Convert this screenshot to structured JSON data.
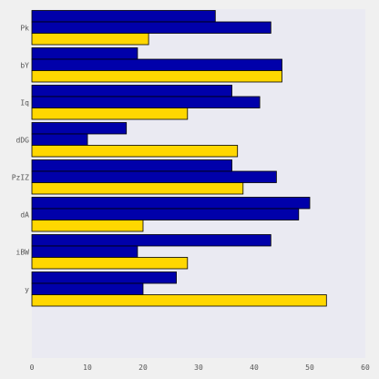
{
  "chart_data": {
    "type": "bar",
    "orientation": "horizontal",
    "categories": [
      "Pk",
      "bY",
      "Iq",
      "dDG",
      "PzIZ",
      "dA",
      "iBW",
      "y"
    ],
    "series": [
      {
        "values": [
          33,
          19,
          36,
          17,
          36,
          50,
          43,
          26
        ]
      },
      {
        "values": [
          43,
          45,
          41,
          10,
          44,
          48,
          19,
          20
        ]
      },
      {
        "values": [
          21,
          45,
          28,
          37,
          38,
          20,
          28,
          53
        ]
      }
    ],
    "xlim": [
      0,
      60
    ],
    "xticks": [
      0,
      10,
      20,
      30,
      40,
      50,
      60
    ],
    "grid": false,
    "legend": "none",
    "colors": [
      "#0000aa",
      "#0000aa",
      "#ffd700"
    ],
    "bar_edge_color": "#000000",
    "plot_background": "#eaeaf2",
    "page_background": "#f0f0f0",
    "title": "",
    "xlabel": "",
    "ylabel": ""
  }
}
